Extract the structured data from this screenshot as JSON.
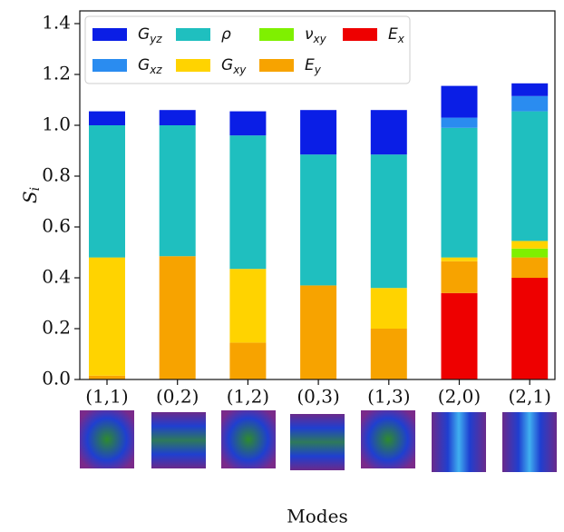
{
  "chart_data": {
    "type": "stacked_bar",
    "y_label": "Si",
    "x_label": "Modes",
    "categories": [
      "(1,1)",
      "(0,2)",
      "(1,2)",
      "(0,3)",
      "(1,3)",
      "(2,0)",
      "(2,1)"
    ],
    "series": [
      {
        "name": "Ex",
        "color": "#ee0000",
        "values": [
          0,
          0,
          0,
          0,
          0,
          0.34,
          0.4
        ]
      },
      {
        "name": "Ey",
        "color": "#f7a300",
        "values": [
          0.015,
          0.485,
          0.145,
          0.37,
          0.2,
          0.125,
          0.08
        ]
      },
      {
        "name": "νxy",
        "color": "#7ff000",
        "values": [
          0,
          0,
          0,
          0,
          0,
          0,
          0.035
        ]
      },
      {
        "name": "Gxy",
        "color": "#ffd300",
        "values": [
          0.465,
          0,
          0.29,
          0,
          0.16,
          0.015,
          0.03
        ]
      },
      {
        "name": "ρ",
        "color": "#1fbfbf",
        "values": [
          0.52,
          0.515,
          0.525,
          0.515,
          0.525,
          0.51,
          0.51
        ]
      },
      {
        "name": "Gxz",
        "color": "#2a8cf0",
        "values": [
          0,
          0,
          0,
          0,
          0,
          0.04,
          0.06
        ]
      },
      {
        "name": "Gyz",
        "color": "#0a1ee6",
        "values": [
          0.055,
          0.06,
          0.095,
          0.175,
          0.175,
          0.125,
          0.05
        ]
      }
    ],
    "ylim": [
      0,
      1.45
    ],
    "yticks": [
      {
        "value": 0,
        "label": "0.0"
      },
      {
        "value": 0.2,
        "label": "0.2"
      },
      {
        "value": 0.4,
        "label": "0.4"
      },
      {
        "value": 0.6,
        "label": "0.6"
      },
      {
        "value": 0.8,
        "label": "0.8"
      },
      {
        "value": 1.0,
        "label": "1.0"
      },
      {
        "value": 1.2,
        "label": "1.2"
      },
      {
        "value": 1.4,
        "label": "1.4"
      }
    ],
    "legend": "upper left"
  }
}
